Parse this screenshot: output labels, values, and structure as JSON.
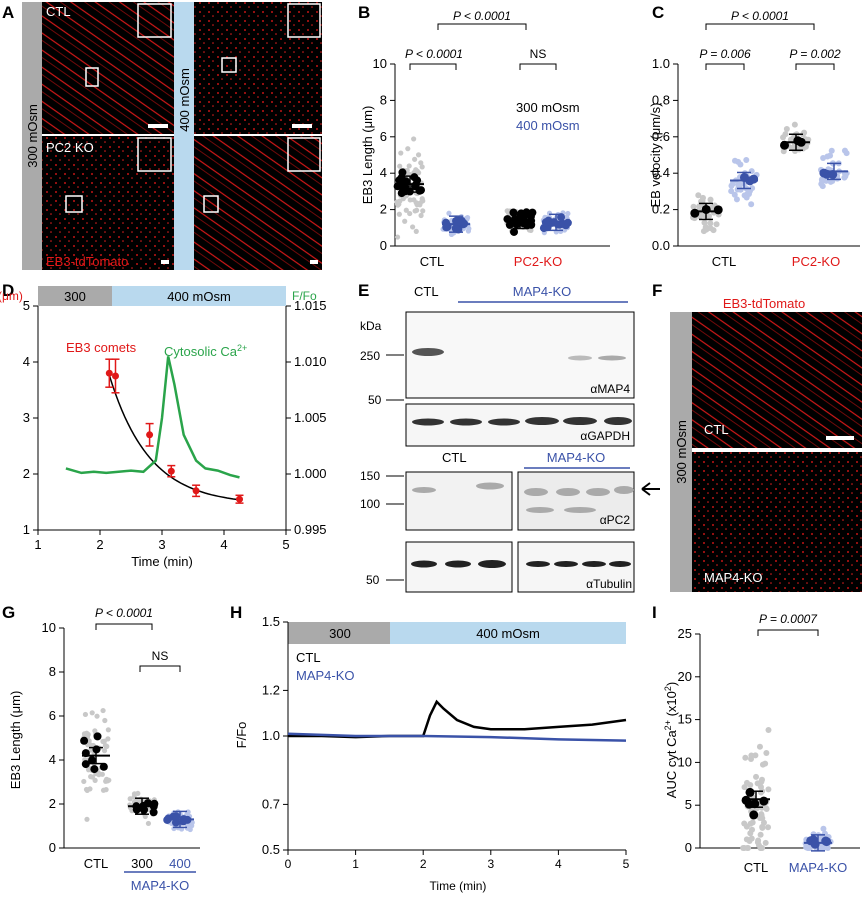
{
  "panel_labels": {
    "A": "A",
    "B": "B",
    "C": "C",
    "D": "D",
    "E": "E",
    "F": "F",
    "G": "G",
    "H": "H",
    "I": "I"
  },
  "panelA": {
    "ctl": "CTL",
    "pc2ko": "PC2 KO",
    "osm300": "300 mOsm",
    "osm400": "400 mOsm",
    "reporter": "EB3-tdTomato",
    "colors": {
      "osm300_bar": "#aaaaaa",
      "osm400_bar": "#b9d9ee",
      "signal": "#e01818"
    }
  },
  "panelB": {
    "ylabel": "EB3 Length (μm)",
    "p_overall": "P < 0.0001",
    "p_ctl": "P < 0.0001",
    "p_pc2": "NS",
    "legend": [
      {
        "name": "300 mOsm",
        "color": "#000000"
      },
      {
        "name": "400 mOsm",
        "color": "#3a52a8"
      }
    ],
    "groups": [
      {
        "label": "CTL",
        "color": "#000000"
      },
      {
        "label": "PC2-KO",
        "color": "#e01818"
      }
    ],
    "chart_data": {
      "type": "scatter",
      "ylim": [
        0,
        10
      ],
      "yticks": [
        0,
        2,
        4,
        6,
        8,
        10
      ],
      "categories": [
        "CTL",
        "PC2-KO"
      ],
      "series": [
        {
          "name": "300 mOsm",
          "means": [
            3.4,
            1.4
          ]
        },
        {
          "name": "400 mOsm",
          "means": [
            1.2,
            1.3
          ]
        }
      ]
    }
  },
  "panelC": {
    "ylabel": "EB velocity (μm/s)",
    "p_overall": "P < 0.0001",
    "p_ctl": "P = 0.006",
    "p_pc2": "P = 0.002",
    "groups": [
      {
        "label": "CTL",
        "color": "#000000"
      },
      {
        "label": "PC2-KO",
        "color": "#e01818"
      }
    ],
    "chart_data": {
      "type": "scatter",
      "ylim": [
        0,
        1
      ],
      "yticks": [
        "0.0",
        "0.2",
        "0.4",
        "0.6",
        "0.8",
        "1.0"
      ],
      "categories": [
        "CTL",
        "PC2-KO"
      ],
      "series": [
        {
          "name": "300 mOsm",
          "means": [
            0.19,
            0.57
          ]
        },
        {
          "name": "400 mOsm",
          "means": [
            0.36,
            0.41
          ]
        }
      ]
    }
  },
  "panelD": {
    "left_unit": "(μm)",
    "right_unit": "F/Fo",
    "bar300": "300",
    "bar400": "400 mOsm",
    "xlabel": "Time (min)",
    "label_comets": "EB3 comets",
    "label_ca": "Cytosolic Ca",
    "chart_data": {
      "type": "line",
      "xlim": [
        1,
        5
      ],
      "ylim_left": [
        1,
        5
      ],
      "ylim_right": [
        0.995,
        1.015
      ],
      "xticks": [
        1,
        2,
        3,
        4,
        5
      ],
      "yticks_left": [
        1,
        2,
        3,
        4,
        5
      ],
      "yticks_right": [
        "0.995",
        "1.000",
        "1.005",
        "1.010",
        "1.015"
      ],
      "series": [
        {
          "name": "EB3 comets",
          "color": "#e01818",
          "x": [
            2.15,
            2.25,
            2.8,
            3.15,
            3.55,
            4.25
          ],
          "y": [
            3.8,
            3.75,
            2.7,
            2.05,
            1.7,
            1.55
          ],
          "err": [
            0.25,
            0.3,
            0.2,
            0.1,
            0.1,
            0.07
          ]
        },
        {
          "name": "Cytosolic Ca2+",
          "color": "#2aa44a",
          "x": [
            1.45,
            1.7,
            1.9,
            2.1,
            2.3,
            2.5,
            2.7,
            2.9,
            3.0,
            3.1,
            3.2,
            3.35,
            3.55,
            3.7,
            3.9,
            4.1,
            4.25
          ],
          "y": [
            1.0005,
            1.0001,
            1.0002,
            1.0001,
            1.0002,
            1.0003,
            1.0002,
            1.0012,
            1.005,
            1.0105,
            1.008,
            1.0035,
            1.0012,
            1.0005,
            1.0003,
            0.9999,
            0.9997
          ]
        }
      ]
    }
  },
  "panelE": {
    "ctl": "CTL",
    "map4ko": "MAP4-KO",
    "kda": "kDa",
    "blots": [
      {
        "label": "αMAP4",
        "markers": [
          "250"
        ]
      },
      {
        "label": "αGAPDH",
        "markers": [
          "50"
        ]
      },
      {
        "label": "αPC2",
        "markers": [
          "150",
          "100"
        ]
      },
      {
        "label": "αTubulin",
        "markers": [
          "50"
        ]
      }
    ],
    "ctl2": "CTL",
    "map4ko2": "MAP4-KO"
  },
  "panelF": {
    "title": "EB3-tdTomato",
    "side": "300 mOsm",
    "ctl": "CTL",
    "ko": "MAP4-KO"
  },
  "panelG": {
    "ylabel": "EB3 Length (μm)",
    "p1": "P < 0.0001",
    "p2": "NS",
    "xcats": [
      "CTL",
      "300",
      "400"
    ],
    "sub": "MAP4-KO",
    "chart_data": {
      "type": "scatter",
      "ylim": [
        0,
        10
      ],
      "yticks": [
        0,
        2,
        4,
        6,
        8,
        10
      ],
      "categories": [
        "CTL",
        "300",
        "400"
      ],
      "means": [
        4.2,
        1.9,
        1.3
      ]
    }
  },
  "panelH": {
    "bar300": "300",
    "bar400": "400 mOsm",
    "legend_ctl": "CTL",
    "legend_ko": "MAP4-KO",
    "ylabel": "F/Fo",
    "xlabel": "Time (min)",
    "chart_data": {
      "type": "line",
      "xlim": [
        0,
        5
      ],
      "ylim": [
        0.5,
        1.5
      ],
      "xticks": [
        0,
        1,
        2,
        3,
        4,
        5
      ],
      "yticks": [
        "0.5",
        "0.7",
        "1.0",
        "1.2",
        "1.5"
      ],
      "series": [
        {
          "name": "CTL",
          "color": "#000000",
          "x": [
            0,
            0.5,
            1,
            1.5,
            2,
            2.1,
            2.2,
            2.3,
            2.5,
            2.75,
            3,
            3.5,
            4,
            4.5,
            5
          ],
          "y": [
            1.0,
            1.0,
            0.995,
            1.0,
            1.0,
            1.09,
            1.15,
            1.12,
            1.07,
            1.04,
            1.03,
            1.03,
            1.04,
            1.05,
            1.07
          ]
        },
        {
          "name": "MAP4-KO",
          "color": "#3a52a8",
          "x": [
            0,
            1,
            2,
            3,
            4,
            5
          ],
          "y": [
            1.01,
            1.0,
            1.0,
            0.995,
            0.985,
            0.98
          ]
        }
      ]
    }
  },
  "panelI": {
    "ylabel": "AUC cyt Ca",
    "p": "P = 0.0007",
    "xcats": [
      "CTL",
      "MAP4-KO"
    ],
    "chart_data": {
      "type": "scatter",
      "ylim": [
        0,
        25
      ],
      "yticks": [
        0,
        5,
        10,
        15,
        20,
        25
      ],
      "categories": [
        "CTL",
        "MAP4-KO"
      ],
      "means": [
        5.7,
        0.6
      ]
    }
  }
}
